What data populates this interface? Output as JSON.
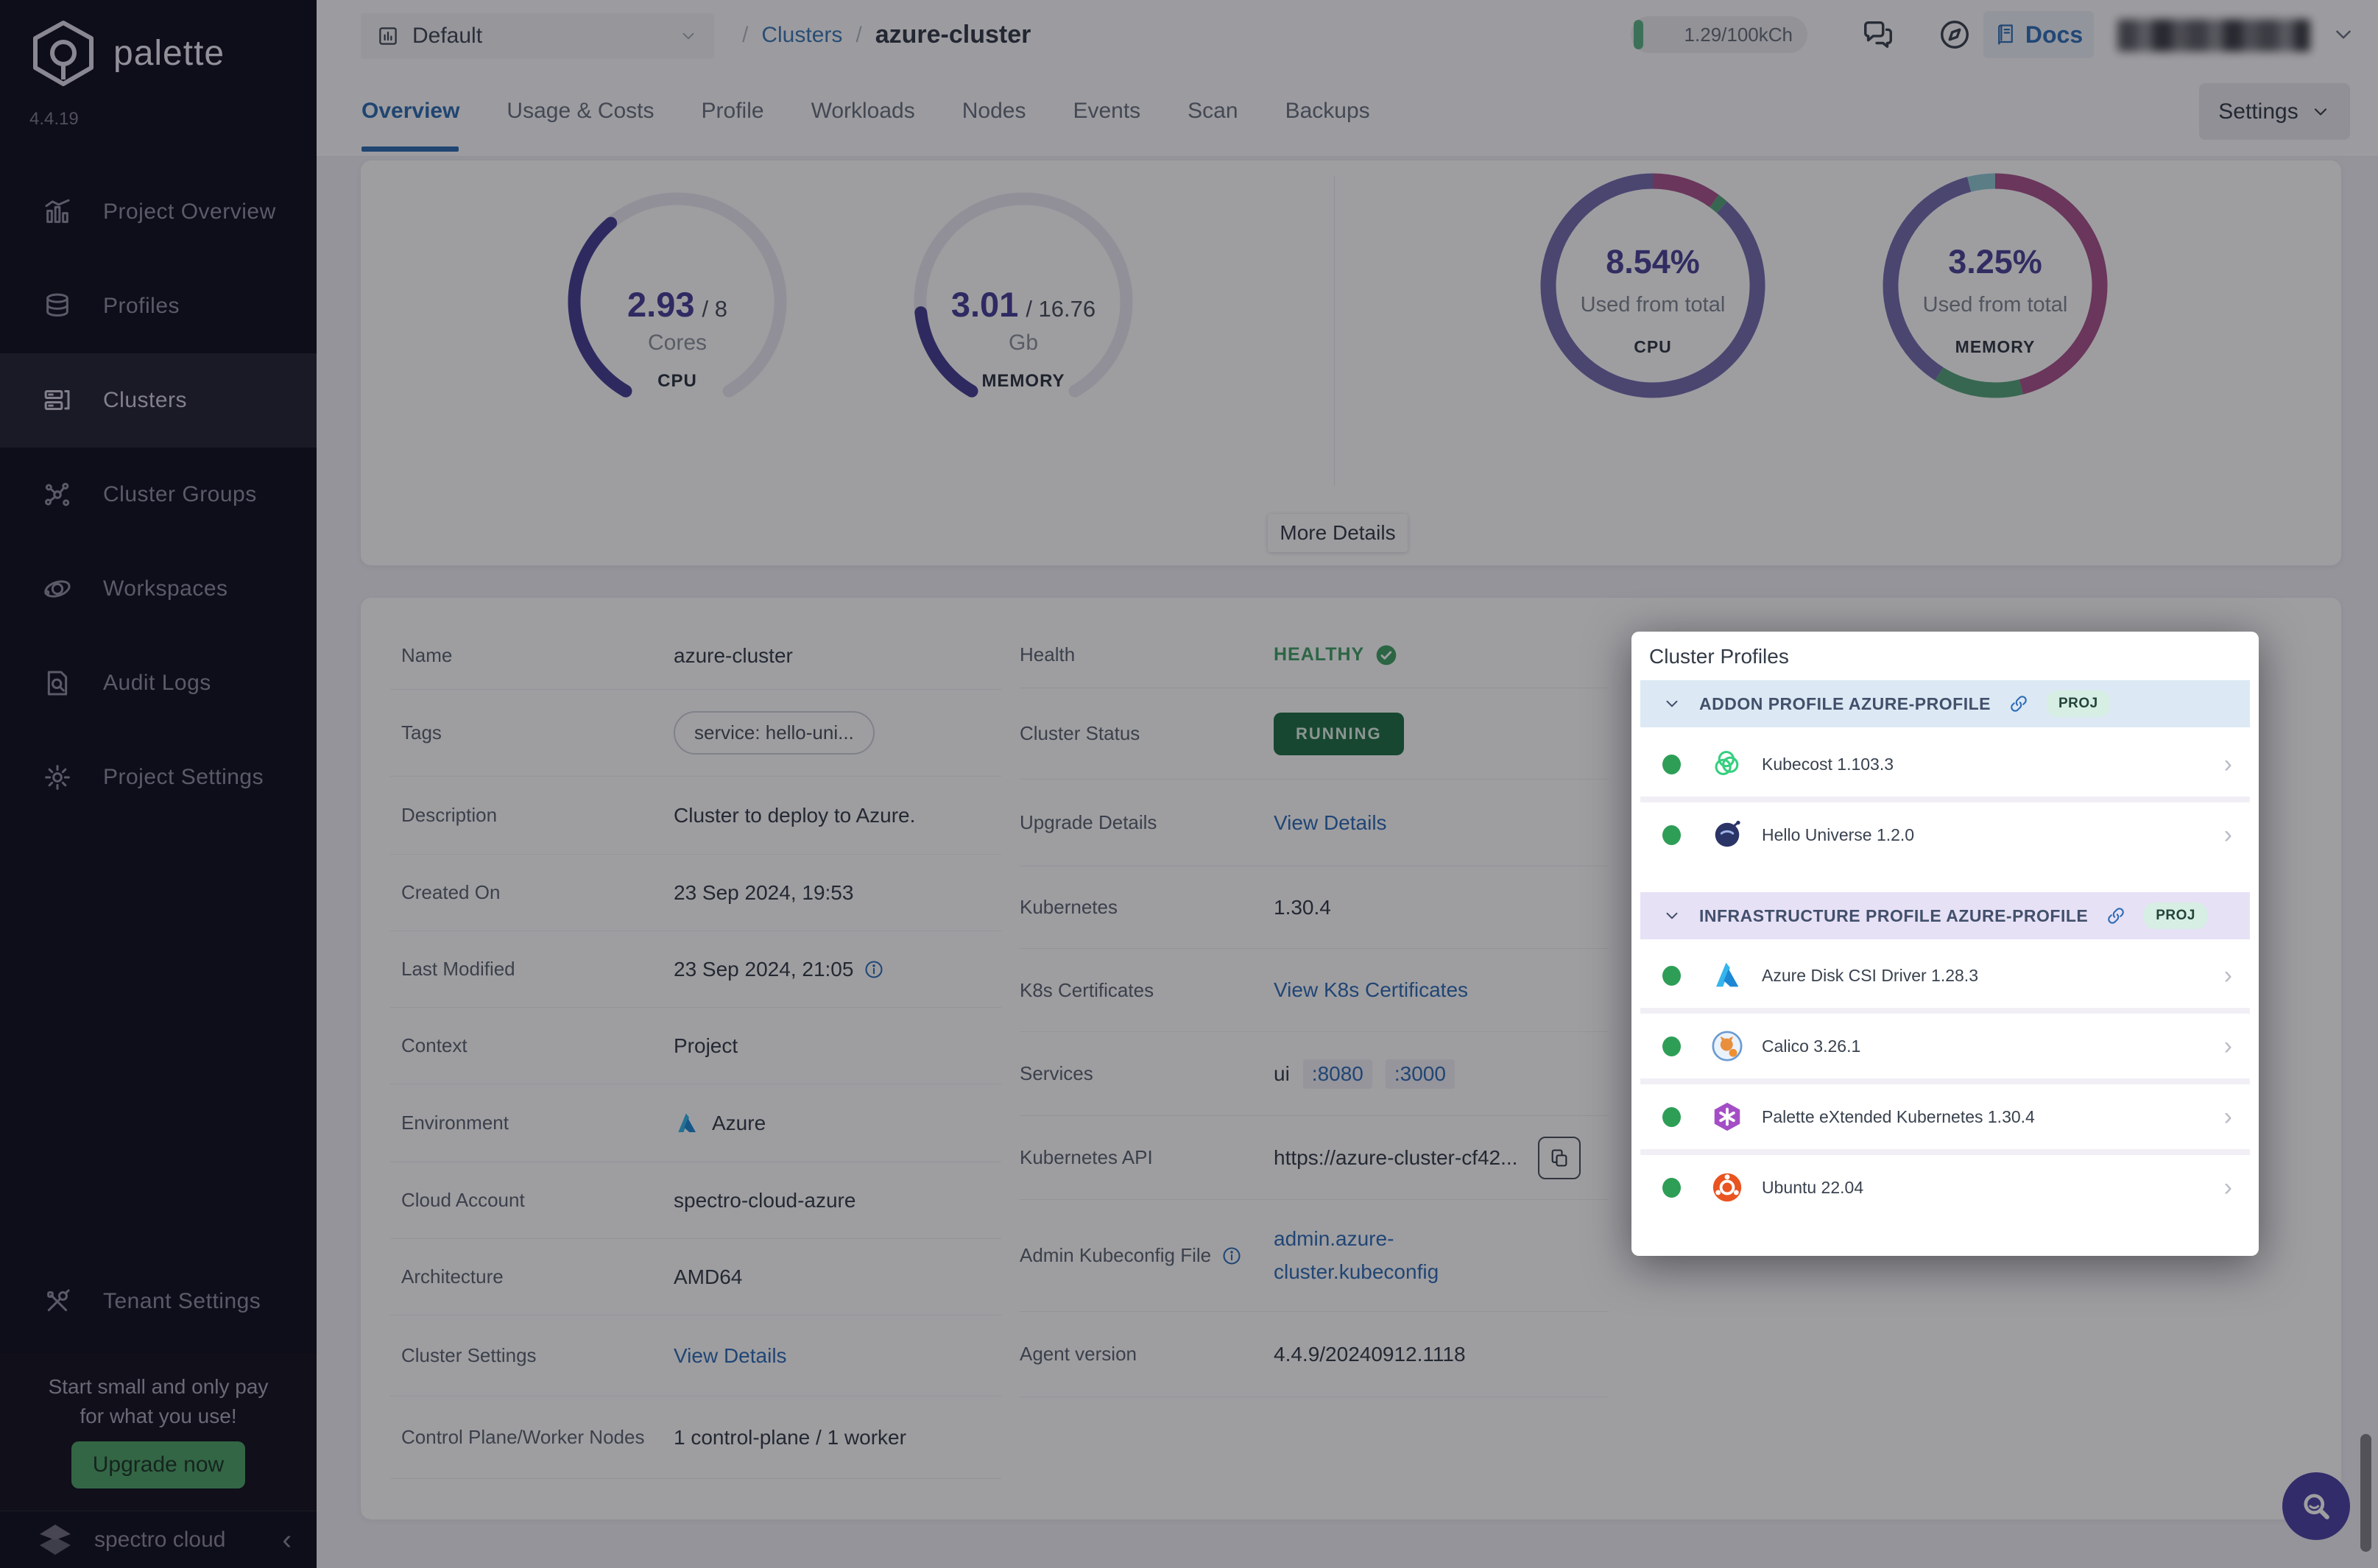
{
  "sidebar": {
    "brand": "palette",
    "version": "4.4.19",
    "items": [
      {
        "label": "Project Overview"
      },
      {
        "label": "Profiles"
      },
      {
        "label": "Clusters"
      },
      {
        "label": "Cluster Groups"
      },
      {
        "label": "Workspaces"
      },
      {
        "label": "Audit Logs"
      },
      {
        "label": "Project Settings"
      }
    ],
    "tenant": "Tenant Settings",
    "promo": {
      "line1": "Start small and only pay",
      "line2": "for what you use!",
      "button": "Upgrade now"
    },
    "brand_footer": "spectro cloud"
  },
  "topbar": {
    "project": "Default",
    "breadcrumb": {
      "sep": "/",
      "root": "Clusters",
      "current": "azure-cluster"
    },
    "usage": "1.29/100kCh",
    "docs": "Docs"
  },
  "tabs": {
    "items": [
      "Overview",
      "Usage & Costs",
      "Profile",
      "Workloads",
      "Nodes",
      "Events",
      "Scan",
      "Backups"
    ],
    "settings": "Settings"
  },
  "overview": {
    "more_details": "More Details",
    "gauges": [
      {
        "value": "2.93",
        "total": "/ 8",
        "unit": "Cores",
        "label": "CPU",
        "fraction": 0.366
      },
      {
        "value": "3.01",
        "total": "/ 16.76",
        "unit": "Gb",
        "label": "MEMORY",
        "fraction": 0.18
      }
    ],
    "donuts": [
      {
        "pct": "8.54%",
        "caption": "Used from total",
        "label": "CPU",
        "segments": [
          {
            "value": 0.1,
            "color": "donut_magenta"
          },
          {
            "value": 0.015,
            "color": "donut_green"
          },
          {
            "value": 0.885,
            "color": "donut_purple"
          }
        ]
      },
      {
        "pct": "3.25%",
        "caption": "Used from total",
        "label": "MEMORY",
        "segments": [
          {
            "value": 0.46,
            "color": "donut_magenta"
          },
          {
            "value": 0.13,
            "color": "donut_green"
          },
          {
            "value": 0.37,
            "color": "donut_purple"
          },
          {
            "value": 0.04,
            "color": "donut_teal"
          }
        ]
      }
    ]
  },
  "colors": {
    "gauge_track": "#e9e8f0",
    "gauge_fill": "#453e93",
    "donut_purple": "#746dae",
    "donut_magenta": "#a8538b",
    "donut_green": "#56a37a",
    "donut_teal": "#8fc8d3",
    "green_dot": "#2e9e57"
  },
  "details": {
    "name": {
      "label": "Name",
      "value": "azure-cluster"
    },
    "tags": {
      "label": "Tags",
      "value": "service: hello-uni..."
    },
    "description": {
      "label": "Description",
      "value": "Cluster to deploy to Azure."
    },
    "created_on": {
      "label": "Created On",
      "value": "23 Sep 2024, 19:53"
    },
    "last_modified": {
      "label": "Last Modified",
      "value": "23 Sep 2024, 21:05"
    },
    "context": {
      "label": "Context",
      "value": "Project"
    },
    "environment": {
      "label": "Environment",
      "value": "Azure"
    },
    "cloud_account": {
      "label": "Cloud Account",
      "value": "spectro-cloud-azure"
    },
    "architecture": {
      "label": "Architecture",
      "value": "AMD64"
    },
    "cluster_settings": {
      "label": "Cluster Settings",
      "link": "View Details"
    },
    "nodes": {
      "label": "Control Plane/Worker Nodes",
      "value": "1 control-plane / 1 worker"
    },
    "health": {
      "label": "Health",
      "value": "HEALTHY"
    },
    "cluster_status": {
      "label": "Cluster Status",
      "value": "RUNNING"
    },
    "upgrade_details": {
      "label": "Upgrade Details",
      "link": "View Details"
    },
    "kubernetes": {
      "label": "Kubernetes",
      "value": "1.30.4"
    },
    "k8s_certificates": {
      "label": "K8s Certificates",
      "link": "View K8s Certificates"
    },
    "services": {
      "label": "Services",
      "prefix": "ui",
      "ports": [
        ":8080",
        ":3000"
      ]
    },
    "kubernetes_api": {
      "label": "Kubernetes API",
      "value": "https://azure-cluster-cf42..."
    },
    "admin_kubeconfig": {
      "label": "Admin Kubeconfig File",
      "link": "admin.azure-cluster.kubeconfig"
    },
    "agent_version": {
      "label": "Agent version",
      "value": "4.4.9/20240912.1118"
    }
  },
  "cluster_profiles": {
    "title": "Cluster Profiles",
    "sections": [
      {
        "name": "ADDON PROFILE AZURE-PROFILE",
        "badge": "PROJ",
        "items": [
          {
            "name": "Kubecost 1.103.3"
          },
          {
            "name": "Hello Universe 1.2.0"
          }
        ]
      },
      {
        "name": "INFRASTRUCTURE PROFILE AZURE-PROFILE",
        "badge": "PROJ",
        "items": [
          {
            "name": "Azure Disk CSI Driver 1.28.3"
          },
          {
            "name": "Calico 3.26.1"
          },
          {
            "name": "Palette eXtended Kubernetes 1.30.4"
          },
          {
            "name": "Ubuntu 22.04"
          }
        ]
      }
    ]
  }
}
